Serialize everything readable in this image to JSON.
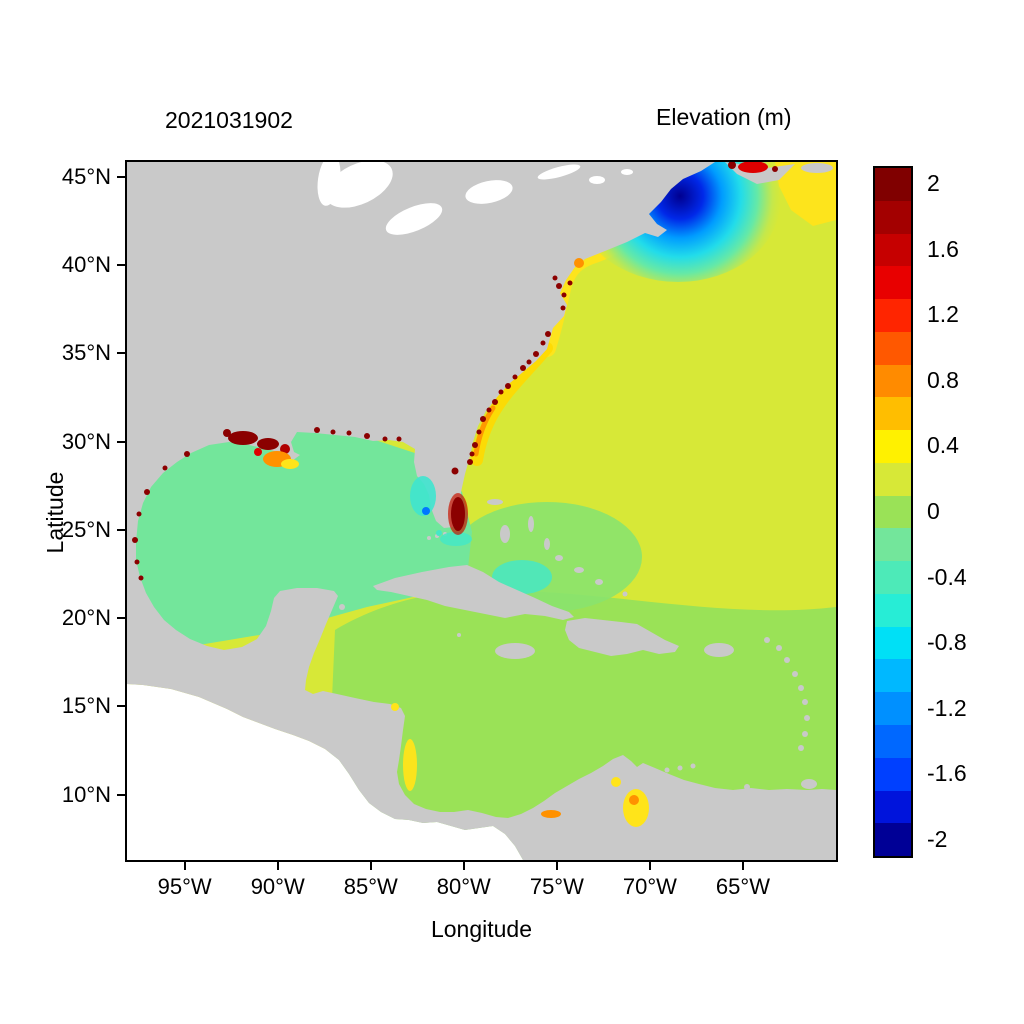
{
  "chart_data": {
    "type": "heatmap",
    "subtype": "geographic elevation field map (model snapshot, western North Atlantic / Gulf of Mexico / Caribbean)",
    "title_left": "2021031902",
    "title_right": "Elevation (m)",
    "xlabel": "Longitude",
    "ylabel": "Latitude",
    "grid": false,
    "x_axis": {
      "range": [
        -98.1,
        -60.0
      ],
      "ticks": [
        {
          "label": "95°W",
          "value": -95
        },
        {
          "label": "90°W",
          "value": -90
        },
        {
          "label": "85°W",
          "value": -85
        },
        {
          "label": "80°W",
          "value": -80
        },
        {
          "label": "75°W",
          "value": -75
        },
        {
          "label": "70°W",
          "value": -70
        },
        {
          "label": "65°W",
          "value": -65
        }
      ]
    },
    "y_axis": {
      "range": [
        6.3,
        45.85
      ],
      "ticks": [
        {
          "label": "45°N",
          "value": 45
        },
        {
          "label": "40°N",
          "value": 40
        },
        {
          "label": "35°N",
          "value": 35
        },
        {
          "label": "30°N",
          "value": 30
        },
        {
          "label": "25°N",
          "value": 25
        },
        {
          "label": "20°N",
          "value": 20
        },
        {
          "label": "15°N",
          "value": 15
        },
        {
          "label": "10°N",
          "value": 10
        }
      ]
    },
    "colorbar": {
      "position": "right",
      "units": "m",
      "range": [
        -2.1,
        2.1
      ],
      "band_width": 0.2,
      "bands": [
        {
          "center": 2.0,
          "color": "#800000"
        },
        {
          "center": 1.8,
          "color": "#a30000"
        },
        {
          "center": 1.6,
          "color": "#c60000"
        },
        {
          "center": 1.4,
          "color": "#e80000"
        },
        {
          "center": 1.2,
          "color": "#ff2500"
        },
        {
          "center": 1.0,
          "color": "#ff5800"
        },
        {
          "center": 0.8,
          "color": "#ff8b00"
        },
        {
          "center": 0.6,
          "color": "#ffbe00"
        },
        {
          "center": 0.4,
          "color": "#fff100"
        },
        {
          "center": 0.2,
          "color": "#d7e837"
        },
        {
          "center": 0.0,
          "color": "#9ae257"
        },
        {
          "center": -0.2,
          "color": "#73e69b"
        },
        {
          "center": -0.4,
          "color": "#4deab8"
        },
        {
          "center": -0.6,
          "color": "#27edd6"
        },
        {
          "center": -0.8,
          "color": "#00e0f6"
        },
        {
          "center": -1.0,
          "color": "#00b8ff"
        },
        {
          "center": -1.2,
          "color": "#0090ff"
        },
        {
          "center": -1.4,
          "color": "#0068ff"
        },
        {
          "center": -1.6,
          "color": "#0040ff"
        },
        {
          "center": -1.8,
          "color": "#0014dc"
        },
        {
          "center": -2.0,
          "color": "#000096"
        }
      ],
      "ticks": [
        {
          "label": "2",
          "value": 2
        },
        {
          "label": "1.6",
          "value": 1.6
        },
        {
          "label": "1.2",
          "value": 1.2
        },
        {
          "label": "0.8",
          "value": 0.8
        },
        {
          "label": "0.4",
          "value": 0.4
        },
        {
          "label": "0",
          "value": 0
        },
        {
          "label": "-0.4",
          "value": -0.4
        },
        {
          "label": "-0.8",
          "value": -0.8
        },
        {
          "label": "-1.2",
          "value": -1.2
        },
        {
          "label": "-1.6",
          "value": -1.6
        },
        {
          "label": "-2",
          "value": -2
        }
      ]
    },
    "regions": [
      {
        "name": "open-atlantic",
        "approx_value_m": 0.3,
        "color": "#d7e837"
      },
      {
        "name": "caribbean-and-south-atlantic",
        "approx_value_m": 0.1,
        "color": "#9ae257"
      },
      {
        "name": "gulf-of-mexico",
        "approx_value_m": -0.1,
        "color": "#73e69b"
      },
      {
        "name": "bahamas-banks",
        "approx_value_m": 0.0,
        "color": "#8ae36e"
      },
      {
        "name": "gulf-of-maine-depression",
        "approx_value_m": -2.0,
        "color": "#000096"
      },
      {
        "name": "gulf-of-maine-gradient-ring",
        "approx_value_m": -1.0,
        "color": "#00b8ff"
      },
      {
        "name": "bay-of-fundy-high",
        "approx_value_m": 1.8,
        "color": "#c60000"
      },
      {
        "name": "nova-scotia-offshore",
        "approx_value_m": 0.5,
        "color": "#fff100"
      },
      {
        "name": "northeast-us-coastal-band",
        "approx_value_m": 0.5,
        "color": "#ffe41a"
      },
      {
        "name": "new-york-bight-spot",
        "approx_value_m": 0.9,
        "color": "#ff9100"
      },
      {
        "name": "carolina-estuary-specks",
        "approx_value_m": 2.0,
        "color": "#8b0000"
      },
      {
        "name": "louisiana-coast-cluster",
        "approx_value_m": 2.0,
        "color": "#8b0000"
      },
      {
        "name": "louisiana-offshore-patch",
        "approx_value_m": 0.9,
        "color": "#ff9100"
      },
      {
        "name": "south-florida-high",
        "approx_value_m": 2.0,
        "color": "#8b0000"
      },
      {
        "name": "southwest-florida-shelf-low",
        "approx_value_m": -0.6,
        "color": "#3fe4cf"
      },
      {
        "name": "nicaragua-coast-band",
        "approx_value_m": 0.5,
        "color": "#ffe41a"
      },
      {
        "name": "lake-maracaibo",
        "approx_value_m": 0.6,
        "color": "#ffe41a"
      },
      {
        "name": "texas-mexico-lagoon-specks",
        "approx_value_m": 2.0,
        "color": "#8b0000"
      }
    ],
    "land_color": "#c9c9c9",
    "no_data_color": "#ffffff",
    "background": "#ffffff"
  },
  "palette": {
    "land": "#c9c9c9",
    "lake": "#ffffff",
    "nodata": "#ffffff",
    "atlantic": "#d7e837",
    "caribbean": "#9ae257",
    "bahamas_green": "#8ae36e",
    "gulf": "#73e69b",
    "turquoise": "#45e7c6",
    "turquoise2": "#3fe4cf",
    "yellow": "#ffe41a",
    "yellow2": "#ffd900",
    "orange": "#ff9100",
    "red": "#dd0000",
    "red2": "#c81400",
    "dark_red": "#8b0000",
    "blue_spot": "#0077ff"
  }
}
